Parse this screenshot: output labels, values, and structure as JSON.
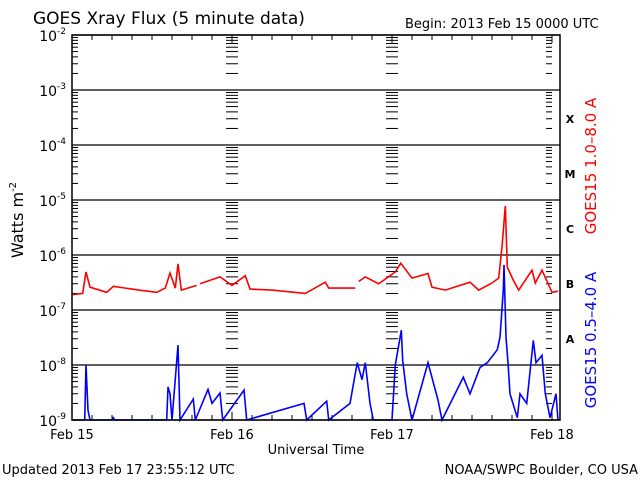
{
  "header": {
    "title": "GOES Xray Flux (5 minute data)",
    "begin": "Begin:  2013 Feb 15 0000 UTC"
  },
  "footer": {
    "updated": "Updated 2013 Feb 17 23:55:12 UTC",
    "credit": "NOAA/SWPC Boulder, CO USA"
  },
  "chart_data": {
    "type": "line",
    "title": "GOES Xray Flux (5 minute data)",
    "xlabel": "Universal Time",
    "ylabel": "Watts m",
    "ylabel_superscript": "-2",
    "yscale": "log",
    "ylim": [
      1e-09,
      0.01
    ],
    "xlim": [
      "2013-02-15T00:00",
      "2013-02-18T01:00"
    ],
    "grid": "horizontal lines at each decade",
    "x_ticks": [
      {
        "label": "Feb 15",
        "t": "2013-02-15T00:00"
      },
      {
        "label": "Feb 16",
        "t": "2013-02-16T00:00"
      },
      {
        "label": "Feb 17",
        "t": "2013-02-17T00:00"
      },
      {
        "label": "Feb 18",
        "t": "2013-02-18T00:00"
      }
    ],
    "y_ticks": [
      {
        "base": "10",
        "exp": "-2",
        "value": 0.01
      },
      {
        "base": "10",
        "exp": "-3",
        "value": 0.001
      },
      {
        "base": "10",
        "exp": "-4",
        "value": 0.0001
      },
      {
        "base": "10",
        "exp": "-5",
        "value": 1e-05
      },
      {
        "base": "10",
        "exp": "-6",
        "value": 1e-06
      },
      {
        "base": "10",
        "exp": "-7",
        "value": 1e-07
      },
      {
        "base": "10",
        "exp": "-8",
        "value": 1e-08
      },
      {
        "base": "10",
        "exp": "-9",
        "value": 1e-09
      }
    ],
    "flare_classes": [
      {
        "label": "X",
        "value": 0.0003
      },
      {
        "label": "M",
        "value": 3e-05
      },
      {
        "label": "C",
        "value": 3e-06
      },
      {
        "label": "B",
        "value": 3e-07
      },
      {
        "label": "A",
        "value": 3e-08
      }
    ],
    "series": [
      {
        "name": "GOES15 1.0–8.0 A",
        "color": "#ff0000",
        "points": [
          [
            "2013-02-15T00:00",
            1.9e-07
          ],
          [
            "2013-02-15T01:36",
            2e-07
          ],
          [
            "2013-02-15T02:06",
            4.9e-07
          ],
          [
            "2013-02-15T02:42",
            2.6e-07
          ],
          [
            "2013-02-15T05:12",
            2.1e-07
          ],
          [
            "2013-02-15T06:12",
            2.7e-07
          ],
          [
            "2013-02-15T10:00",
            2.3e-07
          ],
          [
            "2013-02-15T12:42",
            2.1e-07
          ],
          [
            "2013-02-15T14:00",
            2.5e-07
          ],
          [
            "2013-02-15T14:42",
            4.7e-07
          ],
          [
            "2013-02-15T15:30",
            2.5e-07
          ],
          [
            "2013-02-15T15:54",
            6.9e-07
          ],
          [
            "2013-02-15T16:24",
            2.3e-07
          ],
          [
            "2013-02-15T18:42",
            2.8e-07
          ],
          null,
          [
            "2013-02-15T19:12",
            3e-07
          ],
          [
            "2013-02-15T22:12",
            4e-07
          ],
          [
            "2013-02-16T00:00",
            2.8e-07
          ],
          [
            "2013-02-16T02:00",
            4.2e-07
          ],
          [
            "2013-02-16T02:42",
            2.4e-07
          ],
          [
            "2013-02-16T06:00",
            2.3e-07
          ],
          [
            "2013-02-16T11:00",
            2e-07
          ],
          [
            "2013-02-16T14:00",
            3.2e-07
          ],
          [
            "2013-02-16T14:30",
            2.5e-07
          ],
          [
            "2013-02-16T18:30",
            2.5e-07
          ],
          null,
          [
            "2013-02-16T19:00",
            3.3e-07
          ],
          [
            "2013-02-16T20:00",
            4e-07
          ],
          [
            "2013-02-16T22:00",
            3e-07
          ],
          [
            "2013-02-17T00:30",
            4.9e-07
          ],
          [
            "2013-02-17T01:18",
            7.1e-07
          ],
          [
            "2013-02-17T03:00",
            3.8e-07
          ],
          [
            "2013-02-17T05:24",
            4.6e-07
          ],
          [
            "2013-02-17T06:00",
            2.6e-07
          ],
          [
            "2013-02-17T08:00",
            2.3e-07
          ],
          [
            "2013-02-17T11:42",
            3.2e-07
          ],
          [
            "2013-02-17T13:00",
            2.3e-07
          ],
          [
            "2013-02-17T15:00",
            3.1e-07
          ],
          [
            "2013-02-17T16:00",
            3.8e-07
          ],
          [
            "2013-02-17T16:30",
            1.4e-06
          ],
          [
            "2013-02-17T17:00",
            7.8e-06
          ],
          [
            "2013-02-17T17:18",
            6e-07
          ],
          [
            "2013-02-17T18:12",
            3.5e-07
          ],
          [
            "2013-02-17T19:00",
            2.3e-07
          ],
          [
            "2013-02-17T21:00",
            5.3e-07
          ],
          [
            "2013-02-17T21:30",
            3.1e-07
          ],
          [
            "2013-02-17T22:30",
            5.3e-07
          ],
          [
            "2013-02-18T00:00",
            2.1e-07
          ],
          [
            "2013-02-18T00:54",
            2.2e-07
          ]
        ]
      },
      {
        "name": "GOES15 0.5–4.0 A",
        "color": "#0000ff",
        "points": [
          [
            "2013-02-15T00:00",
            1e-09
          ],
          [
            "2013-02-15T01:54",
            1e-09
          ],
          [
            "2013-02-15T02:06",
            1e-08
          ],
          [
            "2013-02-15T02:24",
            1.5e-09
          ],
          [
            "2013-02-15T02:42",
            1e-09
          ],
          [
            "2013-02-15T06:00",
            1e-09
          ],
          [
            "2013-02-15T06:12",
            1.1e-09
          ],
          [
            "2013-02-15T06:24",
            1e-09
          ],
          [
            "2013-02-15T14:12",
            1e-09
          ],
          [
            "2013-02-15T14:24",
            4e-09
          ],
          [
            "2013-02-15T14:42",
            3e-09
          ],
          [
            "2013-02-15T15:00",
            1e-09
          ],
          [
            "2013-02-15T15:54",
            2.3e-08
          ],
          [
            "2013-02-15T16:12",
            1e-09
          ],
          [
            "2013-02-15T18:12",
            2.4e-09
          ],
          [
            "2013-02-15T18:30",
            1e-09
          ],
          [
            "2013-02-15T20:24",
            3.6e-09
          ],
          [
            "2013-02-15T21:00",
            2e-09
          ],
          [
            "2013-02-15T22:12",
            3.1e-09
          ],
          [
            "2013-02-15T22:36",
            1e-09
          ],
          [
            "2013-02-16T01:48",
            3.5e-09
          ],
          [
            "2013-02-16T02:12",
            1e-09
          ],
          [
            "2013-02-16T10:48",
            2e-09
          ],
          [
            "2013-02-16T11:12",
            1e-09
          ],
          [
            "2013-02-16T14:12",
            2.2e-09
          ],
          [
            "2013-02-16T14:30",
            1e-09
          ],
          [
            "2013-02-16T17:42",
            2e-09
          ],
          [
            "2013-02-16T18:30",
            7e-09
          ],
          [
            "2013-02-16T18:48",
            1.1e-08
          ],
          [
            "2013-02-16T19:30",
            5.4e-09
          ],
          [
            "2013-02-16T20:00",
            1.1e-08
          ],
          [
            "2013-02-16T20:42",
            2e-09
          ],
          [
            "2013-02-16T21:12",
            1e-09
          ],
          [
            "2013-02-17T00:00",
            1e-09
          ],
          [
            "2013-02-17T00:30",
            1e-08
          ],
          [
            "2013-02-17T01:24",
            4.3e-08
          ],
          [
            "2013-02-17T01:36",
            1.2e-08
          ],
          [
            "2013-02-17T02:12",
            3e-09
          ],
          [
            "2013-02-17T03:00",
            1e-09
          ],
          [
            "2013-02-17T05:24",
            1.1e-08
          ],
          [
            "2013-02-17T06:54",
            2.3e-09
          ],
          [
            "2013-02-17T07:30",
            1e-09
          ],
          [
            "2013-02-17T10:42",
            6e-09
          ],
          [
            "2013-02-17T11:42",
            3e-09
          ],
          [
            "2013-02-17T13:12",
            9e-09
          ],
          [
            "2013-02-17T14:18",
            1.1e-08
          ],
          [
            "2013-02-17T15:48",
            1.9e-08
          ],
          [
            "2013-02-17T16:12",
            3.2e-08
          ],
          [
            "2013-02-17T16:42",
            2.3e-07
          ],
          [
            "2013-02-17T16:48",
            6.6e-07
          ],
          [
            "2013-02-17T17:06",
            3.2e-08
          ],
          [
            "2013-02-17T17:24",
            1.1e-08
          ],
          [
            "2013-02-17T17:42",
            3e-09
          ],
          [
            "2013-02-17T18:48",
            1.1e-09
          ],
          [
            "2013-02-17T19:12",
            3e-09
          ],
          [
            "2013-02-17T20:12",
            2e-09
          ],
          [
            "2013-02-17T21:12",
            2.8e-08
          ],
          [
            "2013-02-17T21:36",
            1.1e-08
          ],
          [
            "2013-02-17T22:30",
            1.5e-08
          ],
          [
            "2013-02-17T23:00",
            3e-09
          ],
          [
            "2013-02-17T23:42",
            1.1e-09
          ],
          [
            "2013-02-18T00:36",
            3e-09
          ],
          [
            "2013-02-18T00:54",
            1e-09
          ]
        ]
      }
    ]
  }
}
